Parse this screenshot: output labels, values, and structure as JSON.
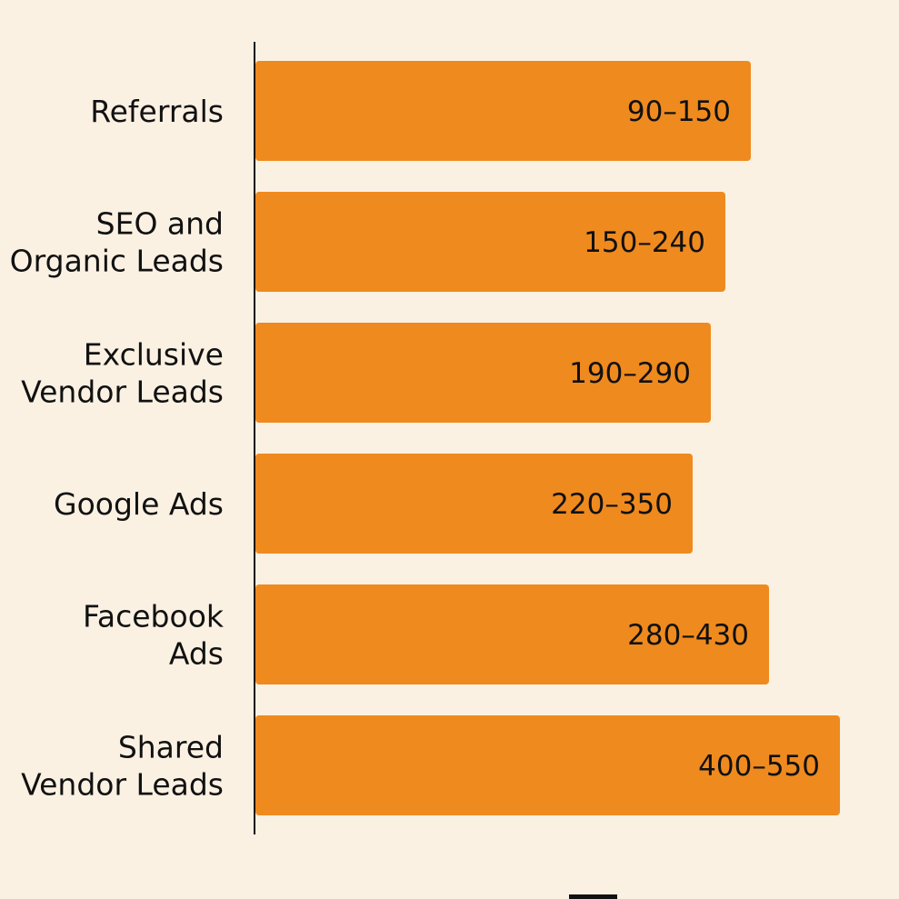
{
  "chart_data": {
    "type": "bar",
    "orientation": "horizontal",
    "categories": [
      [
        "Referrals"
      ],
      [
        "SEO and",
        "Organic Leads"
      ],
      [
        "Exclusive",
        "Vendor Leads"
      ],
      [
        "Google Ads"
      ],
      [
        "Facebook",
        "Ads"
      ],
      [
        "Shared",
        "Vendor Leads"
      ]
    ],
    "data_labels": [
      "90–150",
      "150–240",
      "190–290",
      "220–350",
      "280–430",
      "400–550"
    ],
    "values": [
      545,
      517,
      501,
      481,
      565,
      643
    ],
    "xlim": [
      0,
      709
    ],
    "title": "",
    "xlabel": "",
    "ylabel": "",
    "grid": false,
    "legend": "none",
    "colors": {
      "bar": "#ef8a1f",
      "axis": "#111111",
      "background": "#fbf1e3"
    }
  }
}
